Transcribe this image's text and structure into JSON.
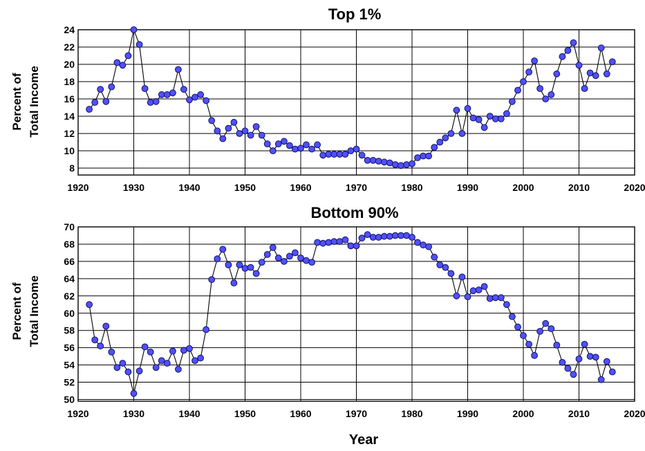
{
  "chart_data": [
    {
      "type": "line",
      "title": "Top 1%",
      "ylabel": [
        "Percent of",
        "Total Income"
      ],
      "xlabel": "",
      "xlim": [
        1920,
        2020
      ],
      "ylim": [
        7.2,
        24
      ],
      "xticks": [
        "1920",
        "1930",
        "1940",
        "1950",
        "1960",
        "1970",
        "1980",
        "1990",
        "2000",
        "2010",
        "2020"
      ],
      "yticks": [
        "8",
        "10",
        "12",
        "14",
        "16",
        "18",
        "20",
        "22",
        "24"
      ],
      "ytick_values": [
        8,
        10,
        12,
        14,
        16,
        18,
        20,
        22,
        24
      ],
      "grid": true,
      "marker_color": "#5050ff",
      "x": [
        1922,
        1923,
        1924,
        1925,
        1926,
        1927,
        1928,
        1929,
        1930,
        1931,
        1932,
        1933,
        1934,
        1935,
        1936,
        1937,
        1938,
        1939,
        1940,
        1941,
        1942,
        1943,
        1944,
        1945,
        1946,
        1947,
        1948,
        1949,
        1950,
        1951,
        1952,
        1953,
        1954,
        1955,
        1956,
        1957,
        1958,
        1959,
        1960,
        1961,
        1962,
        1963,
        1964,
        1965,
        1966,
        1967,
        1968,
        1969,
        1970,
        1971,
        1972,
        1973,
        1974,
        1975,
        1976,
        1977,
        1978,
        1979,
        1980,
        1981,
        1982,
        1983,
        1984,
        1985,
        1986,
        1987,
        1988,
        1989,
        1990,
        1991,
        1992,
        1993,
        1994,
        1995,
        1996,
        1997,
        1998,
        1999,
        2000,
        2001,
        2002,
        2003,
        2004,
        2005,
        2006,
        2007,
        2008,
        2009,
        2010,
        2011,
        2012,
        2013,
        2014,
        2015,
        2016
      ],
      "y": [
        14.8,
        15.6,
        17.1,
        15.7,
        17.4,
        20.2,
        19.9,
        21.0,
        24.0,
        22.3,
        17.2,
        15.6,
        15.7,
        16.5,
        16.5,
        16.7,
        19.4,
        17.1,
        15.9,
        16.2,
        16.5,
        15.8,
        13.5,
        12.3,
        11.4,
        12.6,
        13.3,
        12.0,
        12.3,
        11.8,
        12.8,
        11.8,
        10.8,
        10.0,
        10.8,
        11.1,
        10.6,
        10.2,
        10.3,
        10.7,
        10.2,
        10.7,
        9.5,
        9.6,
        9.6,
        9.6,
        9.6,
        10.0,
        10.2,
        9.5,
        8.9,
        8.9,
        8.8,
        8.7,
        8.6,
        8.4,
        8.3,
        8.4,
        8.5,
        9.2,
        9.4,
        9.4,
        10.4,
        11.0,
        11.5,
        12.0,
        14.7,
        12.0,
        14.9,
        13.8,
        13.6,
        12.7,
        14.0,
        13.7,
        13.7,
        14.3,
        15.7,
        17.0,
        18.0,
        19.1,
        20.4,
        17.2,
        16.0,
        16.5,
        18.9,
        20.9,
        21.6,
        22.5,
        19.9,
        17.2,
        19.0,
        18.7,
        21.9,
        18.9,
        20.3
      ]
    },
    {
      "type": "line",
      "title": "Bottom 90%",
      "ylabel": [
        "Percent of",
        "Total Income"
      ],
      "xlabel": "Year",
      "xlim": [
        1920,
        2020
      ],
      "ylim": [
        49.8,
        70
      ],
      "xticks": [
        "1920",
        "1930",
        "1940",
        "1950",
        "1960",
        "1970",
        "1980",
        "1990",
        "2000",
        "2010",
        "2020"
      ],
      "yticks": [
        "50",
        "52",
        "54",
        "56",
        "58",
        "60",
        "62",
        "64",
        "66",
        "68",
        "70"
      ],
      "ytick_values": [
        50,
        52,
        54,
        56,
        58,
        60,
        62,
        64,
        66,
        68,
        70
      ],
      "grid": true,
      "marker_color": "#5050ff",
      "x": [
        1922,
        1923,
        1924,
        1925,
        1926,
        1927,
        1928,
        1929,
        1930,
        1931,
        1932,
        1933,
        1934,
        1935,
        1936,
        1937,
        1938,
        1939,
        1940,
        1941,
        1942,
        1943,
        1944,
        1945,
        1946,
        1947,
        1948,
        1949,
        1950,
        1951,
        1952,
        1953,
        1954,
        1955,
        1956,
        1957,
        1958,
        1959,
        1960,
        1961,
        1962,
        1963,
        1964,
        1965,
        1966,
        1967,
        1968,
        1969,
        1970,
        1971,
        1972,
        1973,
        1974,
        1975,
        1976,
        1977,
        1978,
        1979,
        1980,
        1981,
        1982,
        1983,
        1984,
        1985,
        1986,
        1987,
        1988,
        1989,
        1990,
        1991,
        1992,
        1993,
        1994,
        1995,
        1996,
        1997,
        1998,
        1999,
        2000,
        2001,
        2002,
        2003,
        2004,
        2005,
        2006,
        2007,
        2008,
        2009,
        2010,
        2011,
        2012,
        2013,
        2014,
        2015,
        2016
      ],
      "y": [
        61.0,
        56.9,
        56.2,
        58.5,
        55.5,
        53.7,
        54.2,
        53.2,
        50.7,
        53.3,
        56.1,
        55.5,
        53.7,
        54.5,
        54.2,
        55.6,
        53.5,
        55.7,
        55.9,
        54.5,
        54.8,
        58.1,
        63.9,
        66.3,
        67.4,
        65.6,
        63.5,
        65.6,
        65.2,
        65.3,
        64.6,
        65.9,
        66.8,
        67.6,
        66.4,
        66.0,
        66.6,
        67.0,
        66.4,
        66.1,
        65.9,
        68.2,
        68.1,
        68.2,
        68.3,
        68.3,
        68.5,
        67.8,
        67.8,
        68.7,
        69.1,
        68.8,
        68.8,
        68.9,
        68.9,
        69.0,
        69.0,
        69.0,
        68.8,
        68.2,
        67.9,
        67.7,
        66.5,
        65.6,
        65.3,
        64.6,
        62.0,
        64.2,
        61.9,
        62.6,
        62.7,
        63.1,
        61.7,
        61.8,
        61.8,
        61.0,
        59.6,
        58.4,
        57.4,
        56.4,
        55.1,
        57.9,
        58.8,
        58.2,
        56.3,
        54.3,
        53.6,
        52.9,
        54.7,
        56.4,
        55.0,
        54.9,
        52.3,
        54.4,
        53.2
      ]
    }
  ]
}
